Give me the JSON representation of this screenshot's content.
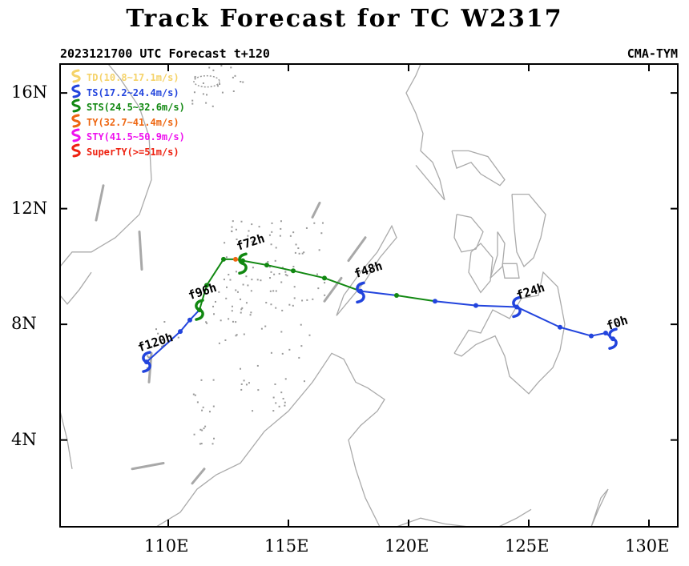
{
  "title": "Track Forecast for TC W2317",
  "subtitle_left": "2023121700 UTC Forecast t+120",
  "subtitle_right": "CMA-TYM",
  "map": {
    "extent": {
      "lon_min": 105.5,
      "lon_max": 131.2,
      "lat_min": 1.0,
      "lat_max": 17.0
    },
    "lat_ticks": [
      {
        "value": 4,
        "label": "4N"
      },
      {
        "value": 8,
        "label": "8N"
      },
      {
        "value": 12,
        "label": "12N"
      },
      {
        "value": 16,
        "label": "16N"
      }
    ],
    "lon_ticks": [
      {
        "value": 110,
        "label": "110E"
      },
      {
        "value": 115,
        "label": "115E"
      },
      {
        "value": 120,
        "label": "120E"
      },
      {
        "value": 125,
        "label": "125E"
      },
      {
        "value": 130,
        "label": "130E"
      }
    ],
    "coast_color": "#aaaaaa",
    "island_color": "#999999"
  },
  "legend": [
    {
      "label": "TD(10.8~17.1m/s)",
      "color": "#f5d36a",
      "symbol": "S"
    },
    {
      "label": "TS(17.2~24.4m/s)",
      "color": "#2244dd",
      "symbol": "S"
    },
    {
      "label": "STS(24.5~32.6m/s)",
      "color": "#118811",
      "symbol": "S"
    },
    {
      "label": "TY(32.7~41.4m/s)",
      "color": "#ee6611",
      "symbol": "S"
    },
    {
      "label": "STY(41.5~50.9m/s)",
      "color": "#ee11ee",
      "symbol": "S"
    },
    {
      "label": "SuperTY(>=51m/s)",
      "color": "#ee2211",
      "symbol": "S"
    }
  ],
  "track": {
    "points": [
      {
        "lon": 128.5,
        "lat": 7.5,
        "cat": "TS"
      },
      {
        "lon": 128.2,
        "lat": 7.7,
        "cat": "TS"
      },
      {
        "lon": 127.6,
        "lat": 7.6,
        "cat": "TS"
      },
      {
        "lon": 126.3,
        "lat": 7.9,
        "cat": "TS"
      },
      {
        "lon": 124.5,
        "lat": 8.6,
        "cat": "TS"
      },
      {
        "lon": 122.8,
        "lat": 8.65,
        "cat": "TS"
      },
      {
        "lon": 121.1,
        "lat": 8.8,
        "cat": "TS"
      },
      {
        "lon": 119.5,
        "lat": 9.0,
        "cat": "STS"
      },
      {
        "lon": 118.0,
        "lat": 9.15,
        "cat": "TS"
      },
      {
        "lon": 116.5,
        "lat": 9.6,
        "cat": "STS"
      },
      {
        "lon": 115.2,
        "lat": 9.85,
        "cat": "STS"
      },
      {
        "lon": 114.1,
        "lat": 10.05,
        "cat": "STS"
      },
      {
        "lon": 113.1,
        "lat": 10.2,
        "cat": "STS"
      },
      {
        "lon": 112.8,
        "lat": 10.25,
        "cat": "TY"
      },
      {
        "lon": 112.3,
        "lat": 10.25,
        "cat": "STS"
      },
      {
        "lon": 111.6,
        "lat": 9.35,
        "cat": "STS"
      },
      {
        "lon": 111.3,
        "lat": 8.5,
        "cat": "STS"
      },
      {
        "lon": 110.9,
        "lat": 8.15,
        "cat": "TS"
      },
      {
        "lon": 110.5,
        "lat": 7.75,
        "cat": "TS"
      },
      {
        "lon": 109.1,
        "lat": 6.7,
        "cat": "TS"
      }
    ],
    "labels": [
      {
        "text": "f0h",
        "lon": 128.3,
        "lat": 7.8
      },
      {
        "text": "f24h",
        "lon": 124.55,
        "lat": 8.85
      },
      {
        "text": "f48h",
        "lon": 117.8,
        "lat": 9.6
      },
      {
        "text": "f72h",
        "lon": 112.9,
        "lat": 10.55
      },
      {
        "text": "f96h",
        "lon": 110.9,
        "lat": 8.85
      },
      {
        "text": "f120h",
        "lon": 108.8,
        "lat": 7.05
      }
    ],
    "symbols": [
      {
        "lon": 128.5,
        "lat": 7.5,
        "cat": "TS"
      },
      {
        "lon": 124.5,
        "lat": 8.6,
        "cat": "TS"
      },
      {
        "lon": 118.0,
        "lat": 9.1,
        "cat": "TS"
      },
      {
        "lon": 113.1,
        "lat": 10.1,
        "cat": "STS"
      },
      {
        "lon": 111.3,
        "lat": 8.5,
        "cat": "STS"
      },
      {
        "lon": 109.1,
        "lat": 6.7,
        "cat": "TS"
      }
    ]
  }
}
